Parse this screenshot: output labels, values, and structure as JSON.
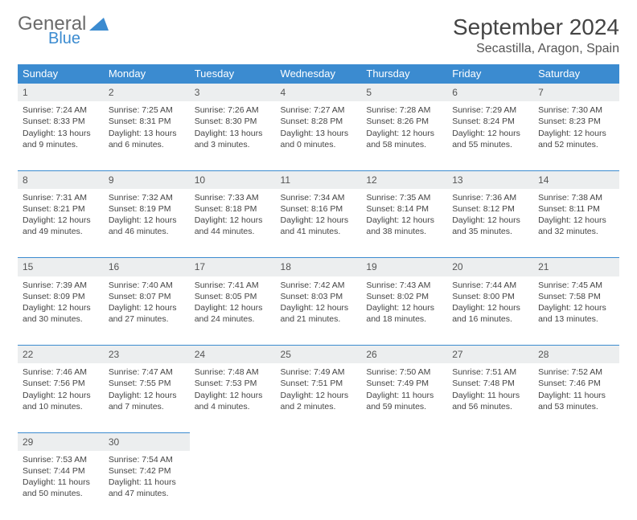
{
  "logo": {
    "general": "General",
    "blue": "Blue"
  },
  "title": "September 2024",
  "location": "Secastilla, Aragon, Spain",
  "colors": {
    "header_bg": "#3b8bd0",
    "header_fg": "#ffffff",
    "daynum_bg": "#eceeef",
    "row_border": "#3b8bd0",
    "logo_general": "#6b6b6b",
    "logo_blue": "#3b8bd0"
  },
  "weekdays": [
    "Sunday",
    "Monday",
    "Tuesday",
    "Wednesday",
    "Thursday",
    "Friday",
    "Saturday"
  ],
  "weeks": [
    [
      {
        "n": "1",
        "sr": "7:24 AM",
        "ss": "8:33 PM",
        "dl": "13 hours and 9 minutes."
      },
      {
        "n": "2",
        "sr": "7:25 AM",
        "ss": "8:31 PM",
        "dl": "13 hours and 6 minutes."
      },
      {
        "n": "3",
        "sr": "7:26 AM",
        "ss": "8:30 PM",
        "dl": "13 hours and 3 minutes."
      },
      {
        "n": "4",
        "sr": "7:27 AM",
        "ss": "8:28 PM",
        "dl": "13 hours and 0 minutes."
      },
      {
        "n": "5",
        "sr": "7:28 AM",
        "ss": "8:26 PM",
        "dl": "12 hours and 58 minutes."
      },
      {
        "n": "6",
        "sr": "7:29 AM",
        "ss": "8:24 PM",
        "dl": "12 hours and 55 minutes."
      },
      {
        "n": "7",
        "sr": "7:30 AM",
        "ss": "8:23 PM",
        "dl": "12 hours and 52 minutes."
      }
    ],
    [
      {
        "n": "8",
        "sr": "7:31 AM",
        "ss": "8:21 PM",
        "dl": "12 hours and 49 minutes."
      },
      {
        "n": "9",
        "sr": "7:32 AM",
        "ss": "8:19 PM",
        "dl": "12 hours and 46 minutes."
      },
      {
        "n": "10",
        "sr": "7:33 AM",
        "ss": "8:18 PM",
        "dl": "12 hours and 44 minutes."
      },
      {
        "n": "11",
        "sr": "7:34 AM",
        "ss": "8:16 PM",
        "dl": "12 hours and 41 minutes."
      },
      {
        "n": "12",
        "sr": "7:35 AM",
        "ss": "8:14 PM",
        "dl": "12 hours and 38 minutes."
      },
      {
        "n": "13",
        "sr": "7:36 AM",
        "ss": "8:12 PM",
        "dl": "12 hours and 35 minutes."
      },
      {
        "n": "14",
        "sr": "7:38 AM",
        "ss": "8:11 PM",
        "dl": "12 hours and 32 minutes."
      }
    ],
    [
      {
        "n": "15",
        "sr": "7:39 AM",
        "ss": "8:09 PM",
        "dl": "12 hours and 30 minutes."
      },
      {
        "n": "16",
        "sr": "7:40 AM",
        "ss": "8:07 PM",
        "dl": "12 hours and 27 minutes."
      },
      {
        "n": "17",
        "sr": "7:41 AM",
        "ss": "8:05 PM",
        "dl": "12 hours and 24 minutes."
      },
      {
        "n": "18",
        "sr": "7:42 AM",
        "ss": "8:03 PM",
        "dl": "12 hours and 21 minutes."
      },
      {
        "n": "19",
        "sr": "7:43 AM",
        "ss": "8:02 PM",
        "dl": "12 hours and 18 minutes."
      },
      {
        "n": "20",
        "sr": "7:44 AM",
        "ss": "8:00 PM",
        "dl": "12 hours and 16 minutes."
      },
      {
        "n": "21",
        "sr": "7:45 AM",
        "ss": "7:58 PM",
        "dl": "12 hours and 13 minutes."
      }
    ],
    [
      {
        "n": "22",
        "sr": "7:46 AM",
        "ss": "7:56 PM",
        "dl": "12 hours and 10 minutes."
      },
      {
        "n": "23",
        "sr": "7:47 AM",
        "ss": "7:55 PM",
        "dl": "12 hours and 7 minutes."
      },
      {
        "n": "24",
        "sr": "7:48 AM",
        "ss": "7:53 PM",
        "dl": "12 hours and 4 minutes."
      },
      {
        "n": "25",
        "sr": "7:49 AM",
        "ss": "7:51 PM",
        "dl": "12 hours and 2 minutes."
      },
      {
        "n": "26",
        "sr": "7:50 AM",
        "ss": "7:49 PM",
        "dl": "11 hours and 59 minutes."
      },
      {
        "n": "27",
        "sr": "7:51 AM",
        "ss": "7:48 PM",
        "dl": "11 hours and 56 minutes."
      },
      {
        "n": "28",
        "sr": "7:52 AM",
        "ss": "7:46 PM",
        "dl": "11 hours and 53 minutes."
      }
    ],
    [
      {
        "n": "29",
        "sr": "7:53 AM",
        "ss": "7:44 PM",
        "dl": "11 hours and 50 minutes."
      },
      {
        "n": "30",
        "sr": "7:54 AM",
        "ss": "7:42 PM",
        "dl": "11 hours and 47 minutes."
      },
      null,
      null,
      null,
      null,
      null
    ]
  ],
  "labels": {
    "sunrise": "Sunrise:",
    "sunset": "Sunset:",
    "daylight": "Daylight:"
  }
}
